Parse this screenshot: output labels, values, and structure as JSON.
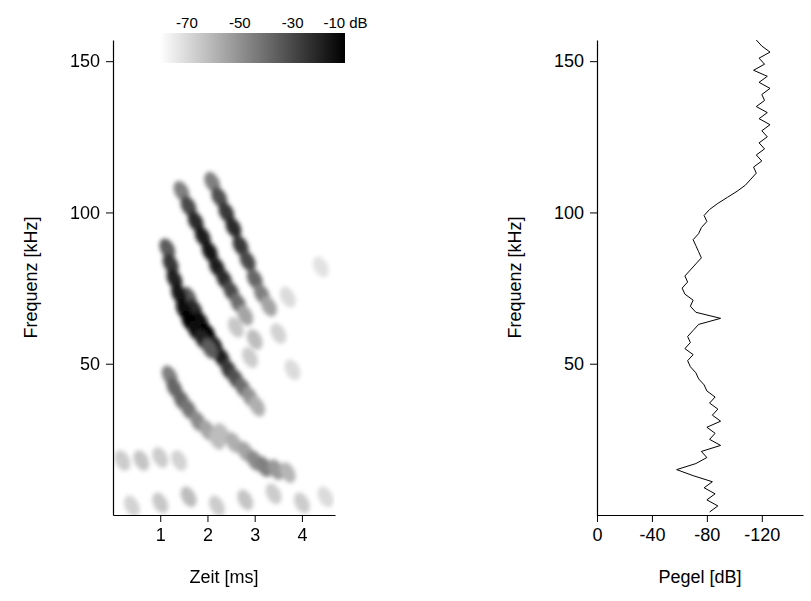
{
  "chart_data": [
    {
      "type": "heatmap",
      "xlabel": "Zeit [ms]",
      "ylabel": "Frequenz [kHz]",
      "xlim": [
        0,
        4.7
      ],
      "ylim": [
        0,
        157
      ],
      "xticks": [
        1,
        2,
        3,
        4
      ],
      "yticks": [
        50,
        100,
        150
      ],
      "cells": [
        [
          0.4,
          3,
          -68
        ],
        [
          1.0,
          4,
          -65
        ],
        [
          1.6,
          6,
          -62
        ],
        [
          2.2,
          3,
          -66
        ],
        [
          2.8,
          5,
          -64
        ],
        [
          3.4,
          7,
          -66
        ],
        [
          4.0,
          4,
          -66
        ],
        [
          4.5,
          6,
          -70
        ],
        [
          0.2,
          18,
          -66
        ],
        [
          0.6,
          18,
          -64
        ],
        [
          1.0,
          19,
          -66
        ],
        [
          1.4,
          18,
          -68
        ],
        [
          2.6,
          62,
          -65
        ],
        [
          3.0,
          58,
          -62
        ],
        [
          3.5,
          60,
          -68
        ],
        [
          2.9,
          52,
          -66
        ],
        [
          3.7,
          72,
          -70
        ],
        [
          4.4,
          82,
          -72
        ],
        [
          3.8,
          48,
          -70
        ],
        [
          2.3,
          27,
          -62
        ],
        [
          2.55,
          24,
          -58
        ],
        [
          2.8,
          21,
          -55
        ],
        [
          3.0,
          18,
          -48
        ],
        [
          3.2,
          16,
          -45
        ],
        [
          3.45,
          15,
          -52
        ],
        [
          3.7,
          14,
          -60
        ],
        [
          1.2,
          46,
          -45
        ],
        [
          1.3,
          42,
          -38
        ],
        [
          1.45,
          38,
          -38
        ],
        [
          1.6,
          35,
          -42
        ],
        [
          1.8,
          31,
          -48
        ],
        [
          2.0,
          28,
          -55
        ],
        [
          2.2,
          25,
          -62
        ],
        [
          1.45,
          107,
          -45
        ],
        [
          1.6,
          102,
          -30
        ],
        [
          1.75,
          97,
          -22
        ],
        [
          1.9,
          92,
          -18
        ],
        [
          2.05,
          87,
          -15
        ],
        [
          2.2,
          82,
          -18
        ],
        [
          2.35,
          78,
          -22
        ],
        [
          2.5,
          74,
          -30
        ],
        [
          2.65,
          70,
          -40
        ],
        [
          2.8,
          66,
          -55
        ],
        [
          2.1,
          110,
          -45
        ],
        [
          2.25,
          105,
          -32
        ],
        [
          2.4,
          100,
          -25
        ],
        [
          2.55,
          95,
          -22
        ],
        [
          2.7,
          89,
          -25
        ],
        [
          2.85,
          84,
          -30
        ],
        [
          3.0,
          78,
          -38
        ],
        [
          3.15,
          73,
          -45
        ],
        [
          3.3,
          69,
          -55
        ],
        [
          1.6,
          72,
          -35
        ],
        [
          1.72,
          68,
          -22
        ],
        [
          1.85,
          64,
          -14
        ],
        [
          2.0,
          60,
          -10
        ],
        [
          2.15,
          56,
          -12
        ],
        [
          2.3,
          52,
          -18
        ],
        [
          2.45,
          48,
          -25
        ],
        [
          2.6,
          45,
          -32
        ],
        [
          2.75,
          42,
          -40
        ],
        [
          2.9,
          39,
          -50
        ],
        [
          3.05,
          36,
          -58
        ],
        [
          1.15,
          88,
          -35
        ],
        [
          1.22,
          83,
          -25
        ],
        [
          1.3,
          78,
          -20
        ],
        [
          1.4,
          73,
          -15
        ],
        [
          1.5,
          68,
          -12
        ],
        [
          1.62,
          64,
          -10
        ],
        [
          1.75,
          61,
          -12
        ],
        [
          1.9,
          58,
          -20
        ],
        [
          2.05,
          55,
          -35
        ]
      ],
      "colorbar": {
        "range": [
          -80,
          -10
        ],
        "ticks": [
          -70,
          -50,
          -30,
          {
            "value": -10,
            "label": "-10 dB"
          }
        ]
      }
    },
    {
      "type": "line",
      "orientation": "horizontal",
      "xlabel": "Pegel [dB]",
      "ylabel": "Frequenz [kHz]",
      "xlim": [
        0,
        -150
      ],
      "ylim": [
        0,
        157
      ],
      "xticks": [
        0,
        -40,
        -80,
        -120
      ],
      "yticks": [
        50,
        100,
        150
      ],
      "y": [
        1,
        3,
        5,
        7,
        9,
        11,
        13,
        15,
        17,
        19,
        21,
        23,
        25,
        27,
        29,
        31,
        33,
        35,
        37,
        39,
        41,
        43,
        45,
        47,
        49,
        51,
        53,
        55,
        57,
        59,
        61,
        63,
        65,
        67,
        69,
        71,
        73,
        75,
        77,
        79,
        81,
        83,
        85,
        87,
        89,
        91,
        93,
        95,
        97,
        99,
        101,
        103,
        105,
        107,
        109,
        111,
        113,
        115,
        117,
        119,
        121,
        123,
        125,
        127,
        129,
        131,
        133,
        135,
        137,
        139,
        141,
        143,
        145,
        147,
        149,
        151,
        153,
        155,
        157
      ],
      "series": [
        {
          "color": "#000000",
          "values": [
            -82,
            -88,
            -80,
            -86,
            -78,
            -84,
            -70,
            -58,
            -72,
            -80,
            -76,
            -90,
            -82,
            -86,
            -80,
            -90,
            -84,
            -88,
            -82,
            -86,
            -80,
            -78,
            -74,
            -72,
            -68,
            -66,
            -70,
            -64,
            -68,
            -66,
            -70,
            -74,
            -90,
            -72,
            -68,
            -70,
            -64,
            -62,
            -66,
            -64,
            -68,
            -72,
            -76,
            -74,
            -72,
            -70,
            -74,
            -76,
            -80,
            -78,
            -82,
            -88,
            -95,
            -102,
            -108,
            -112,
            -116,
            -114,
            -120,
            -116,
            -122,
            -118,
            -124,
            -120,
            -126,
            -118,
            -124,
            -116,
            -122,
            -120,
            -126,
            -118,
            -124,
            -114,
            -122,
            -118,
            -126,
            -120,
            -116
          ]
        }
      ]
    }
  ]
}
